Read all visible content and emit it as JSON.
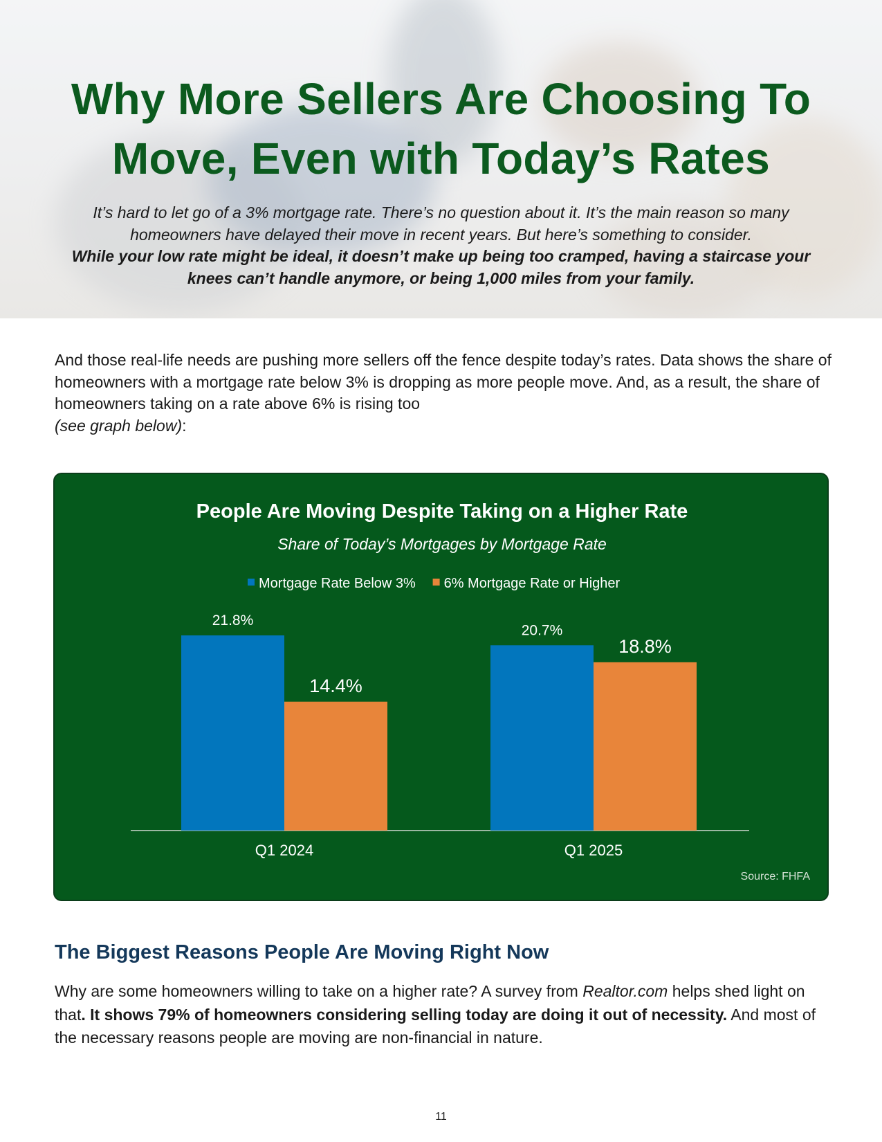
{
  "header": {
    "title_lines": [
      "Why More Sellers Are Choosing To",
      "Move, Even with Today’s Rates"
    ],
    "intro_italic": "It’s hard to let go of a 3% mortgage rate. There’s no question about it. It’s the main reason so many homeowners have delayed their move in recent years. But here’s something to consider.",
    "intro_bold": "While your low rate might be ideal, it doesn’t make up being too cramped, having a staircase your knees can’t handle anymore, or being 1,000 miles from your family."
  },
  "body": {
    "paragraph1": "And those real-life needs are pushing more sellers off the fence despite today’s rates. Data shows the share of homeowners with a mortgage rate below 3% is dropping as more people move. And, as a result, the share of homeowners taking on a rate above 6% is rising too",
    "paragraph1_italic": "(see graph below)",
    "paragraph1_end": ":"
  },
  "chart_data": {
    "type": "bar",
    "title": "People Are Moving Despite Taking on a Higher Rate",
    "subtitle": "Share of Today’s Mortgages by Mortgage Rate",
    "categories": [
      "Q1 2024",
      "Q1 2025"
    ],
    "series": [
      {
        "name": "Mortgage Rate Below 3%",
        "values": [
          21.8,
          20.7
        ],
        "labels": [
          "21.8%",
          "20.7%"
        ],
        "color": "#0276bd"
      },
      {
        "name": "6% Mortgage Rate or Higher",
        "values": [
          14.4,
          18.8
        ],
        "labels": [
          "14.4%",
          "18.8%"
        ],
        "color": "#e8853a"
      }
    ],
    "ylim": [
      0,
      22.5
    ],
    "legend": "top-center",
    "grid": false,
    "source": "Source: FHFA"
  },
  "section2": {
    "heading": "The Biggest Reasons People Are Moving Right Now",
    "p_start": "Why are some homeowners willing to take on a higher rate? A survey from ",
    "p_italic": "Realtor.com",
    "p_mid": " helps shed light on that",
    "p_bold": ". It shows 79% of homeowners considering selling today are doing it out of necessity.",
    "p_end": " And most of the necessary reasons people are moving are non-financial in nature."
  },
  "footer": {
    "page_number": "11"
  },
  "colors": {
    "title_green": "#0b5a1e",
    "card_green": "#05591c",
    "heading_navy": "#14385a"
  }
}
